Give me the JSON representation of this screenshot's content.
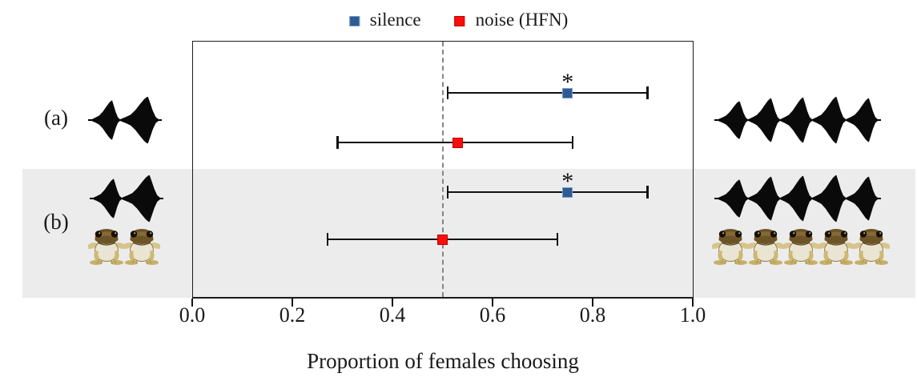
{
  "legend": {
    "items": [
      {
        "label": "silence",
        "color": "#2f5b93",
        "border": "#7b9cc9"
      },
      {
        "label": "noise (HFN)",
        "color": "#fb0d0d",
        "border": "#c00000"
      }
    ]
  },
  "chart_data": {
    "type": "scatter",
    "subtype": "horizontal-point-estimates-with-95CI",
    "title": "",
    "xlabel": "Proportion of females choosing",
    "xlim": [
      0.0,
      1.0
    ],
    "xticks": [
      0.0,
      0.2,
      0.4,
      0.6,
      0.8,
      1.0
    ],
    "tick_labels": [
      "0.0",
      "0.2",
      "0.4",
      "0.6",
      "0.8",
      "1.0"
    ],
    "reference_line_x": 0.5,
    "grid": false,
    "legend_position": "top-center",
    "significance_symbol": "*",
    "groups": [
      {
        "label": "(a)",
        "shaded": false,
        "left_stimulus": {
          "description": "two-pulse call waveform",
          "pulses": 2,
          "frogs": 0
        },
        "right_stimulus": {
          "description": "five-pulse call waveform",
          "pulses": 5,
          "frogs": 0
        },
        "series": [
          {
            "name": "silence",
            "mean": 0.75,
            "ci_low": 0.51,
            "ci_high": 0.91,
            "significant": true,
            "color": "#2f5b93",
            "border": "#7b9cc9"
          },
          {
            "name": "noise (HFN)",
            "mean": 0.53,
            "ci_low": 0.29,
            "ci_high": 0.76,
            "significant": false,
            "color": "#fb0d0d",
            "border": "#c00000"
          }
        ]
      },
      {
        "label": "(b)",
        "shaded": true,
        "left_stimulus": {
          "description": "two-pulse call waveform with two frogs",
          "pulses": 2,
          "frogs": 2
        },
        "right_stimulus": {
          "description": "five-pulse call waveform with five frogs",
          "pulses": 5,
          "frogs": 5
        },
        "series": [
          {
            "name": "silence",
            "mean": 0.75,
            "ci_low": 0.51,
            "ci_high": 0.91,
            "significant": true,
            "color": "#2f5b93",
            "border": "#7b9cc9"
          },
          {
            "name": "noise (HFN)",
            "mean": 0.5,
            "ci_low": 0.27,
            "ci_high": 0.73,
            "significant": false,
            "color": "#fb0d0d",
            "border": "#c00000"
          }
        ]
      }
    ]
  }
}
